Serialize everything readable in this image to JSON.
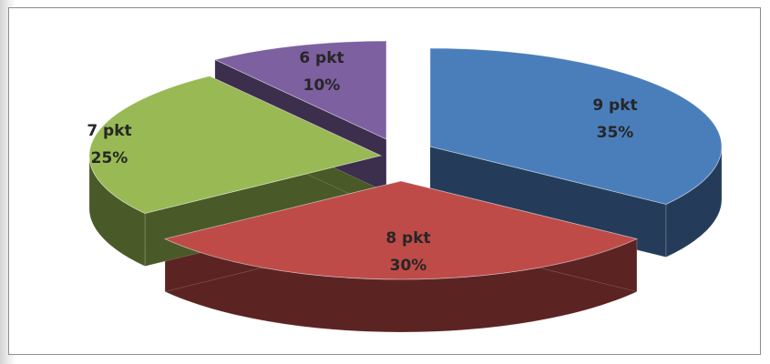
{
  "chart_data": {
    "type": "pie",
    "three_d": true,
    "exploded": true,
    "title": "",
    "legend": "none",
    "slices": [
      {
        "category": "9 pkt",
        "value": 35,
        "percent_label": "35%",
        "color": "#4a7ebb"
      },
      {
        "category": "8 pkt",
        "value": 30,
        "percent_label": "30%",
        "color": "#be4b48"
      },
      {
        "category": "7 pkt",
        "value": 25,
        "percent_label": "25%",
        "color": "#98b954"
      },
      {
        "category": "6 pkt",
        "value": 10,
        "percent_label": "10%",
        "color": "#7d60a0"
      }
    ]
  }
}
